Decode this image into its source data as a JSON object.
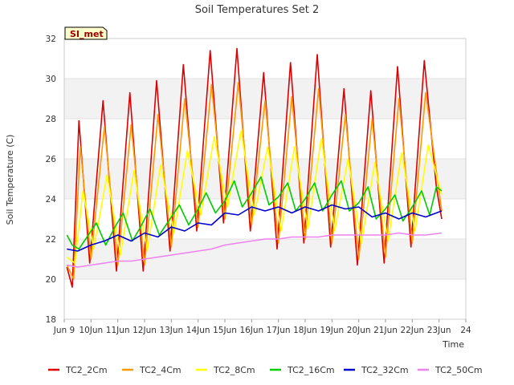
{
  "chart_data": {
    "type": "line",
    "title": "Soil Temperatures Set 2",
    "xlabel": "Time",
    "ylabel": "Soil Temperature (C)",
    "badge": "SI_met",
    "xlim": [
      9,
      24
    ],
    "ylim": [
      18,
      32
    ],
    "x_ticks": [
      9,
      10,
      11,
      12,
      13,
      14,
      15,
      16,
      17,
      18,
      19,
      20,
      21,
      22,
      23,
      24
    ],
    "x_tick_labels": [
      "Jun 9",
      "10Jun",
      "11Jun",
      "12Jun",
      "13Jun",
      "14Jun",
      "15Jun",
      "16Jun",
      "17Jun",
      "18Jun",
      "19Jun",
      "20Jun",
      "21Jun",
      "22Jun",
      "23Jun",
      "24"
    ],
    "y_ticks": [
      18,
      20,
      22,
      24,
      26,
      28,
      30,
      32
    ],
    "y_tick_labels": [
      "18",
      "20",
      "22",
      "24",
      "26",
      "28",
      "30",
      "32"
    ],
    "grid": true,
    "band_color": "#f2f2f2",
    "legend_position": "bottom",
    "series": [
      {
        "name": "TC2_2Cm",
        "color": "#dd0000",
        "x": [
          9.1,
          9.3,
          9.55,
          9.95,
          10.45,
          10.95,
          11.45,
          11.95,
          12.45,
          12.95,
          13.45,
          13.95,
          14.45,
          14.95,
          15.45,
          15.95,
          16.45,
          16.95,
          17.45,
          17.95,
          18.45,
          18.95,
          19.45,
          19.95,
          20.45,
          20.95,
          21.45,
          21.95,
          22.45,
          22.9,
          23.1
        ],
        "y": [
          20.6,
          19.6,
          27.9,
          20.8,
          28.9,
          20.4,
          29.3,
          20.4,
          29.9,
          21.4,
          30.7,
          22.4,
          31.4,
          22.8,
          31.5,
          22.4,
          30.3,
          21.5,
          30.8,
          21.8,
          31.2,
          21.6,
          29.5,
          20.7,
          29.4,
          20.8,
          30.6,
          21.6,
          30.9,
          24.6,
          23.0
        ]
      },
      {
        "name": "TC2_4Cm",
        "color": "#ff9900",
        "x": [
          9.1,
          9.35,
          9.6,
          10.0,
          10.5,
          11.0,
          11.5,
          12.0,
          12.5,
          13.0,
          13.5,
          14.0,
          14.5,
          15.0,
          15.5,
          16.0,
          16.5,
          17.0,
          17.5,
          18.0,
          18.5,
          19.0,
          19.5,
          20.0,
          20.5,
          21.0,
          21.5,
          22.0,
          22.5,
          23.1
        ],
        "y": [
          20.7,
          20.0,
          26.6,
          21.0,
          27.6,
          20.7,
          27.7,
          20.7,
          28.2,
          21.6,
          29.0,
          22.6,
          29.7,
          23.0,
          29.8,
          22.7,
          28.9,
          21.8,
          29.1,
          22.0,
          29.5,
          21.8,
          28.2,
          21.0,
          28.0,
          21.1,
          29.0,
          21.8,
          29.3,
          23.4
        ]
      },
      {
        "name": "TC2_8Cm",
        "color": "#ffff00",
        "x": [
          9.1,
          9.4,
          9.7,
          10.1,
          10.6,
          11.1,
          11.6,
          12.1,
          12.6,
          13.1,
          13.6,
          14.1,
          14.6,
          15.1,
          15.6,
          16.1,
          16.6,
          17.1,
          17.6,
          18.1,
          18.6,
          19.1,
          19.6,
          20.1,
          20.6,
          21.1,
          21.6,
          22.1,
          22.6,
          23.1
        ],
        "y": [
          21.1,
          20.8,
          24.4,
          21.5,
          25.2,
          21.2,
          25.4,
          21.4,
          25.7,
          22.3,
          26.4,
          23.2,
          27.1,
          23.6,
          27.4,
          23.2,
          26.6,
          22.4,
          26.6,
          22.5,
          27.0,
          22.4,
          26.0,
          21.8,
          25.8,
          21.9,
          26.3,
          22.4,
          26.7,
          24.2
        ]
      },
      {
        "name": "TC2_16Cm",
        "color": "#00cc00",
        "x": [
          9.1,
          9.3,
          9.55,
          9.85,
          10.2,
          10.55,
          10.85,
          11.2,
          11.55,
          11.85,
          12.2,
          12.55,
          12.9,
          13.3,
          13.65,
          14.0,
          14.3,
          14.65,
          15.0,
          15.35,
          15.65,
          16.0,
          16.35,
          16.65,
          17.0,
          17.35,
          17.65,
          18.0,
          18.35,
          18.65,
          19.0,
          19.35,
          19.65,
          20.0,
          20.35,
          20.65,
          21.0,
          21.35,
          21.65,
          22.0,
          22.35,
          22.65,
          22.9,
          23.1
        ],
        "y": [
          22.2,
          21.7,
          21.5,
          22.1,
          22.8,
          21.7,
          22.5,
          23.3,
          21.9,
          22.6,
          23.5,
          22.2,
          22.9,
          23.7,
          22.7,
          23.5,
          24.3,
          23.3,
          23.9,
          24.9,
          23.6,
          24.3,
          25.1,
          23.7,
          24.1,
          24.8,
          23.4,
          24.0,
          24.8,
          23.4,
          24.2,
          24.9,
          23.4,
          23.8,
          24.6,
          23.0,
          23.5,
          24.2,
          22.9,
          23.6,
          24.4,
          23.2,
          24.6,
          24.4
        ]
      },
      {
        "name": "TC2_32Cm",
        "color": "#0000cc",
        "x": [
          9.1,
          9.5,
          10.0,
          10.5,
          11.0,
          11.5,
          12.0,
          12.5,
          13.0,
          13.5,
          14.0,
          14.5,
          15.0,
          15.5,
          16.0,
          16.5,
          17.0,
          17.5,
          18.0,
          18.5,
          19.0,
          19.5,
          20.0,
          20.5,
          21.0,
          21.5,
          22.0,
          22.5,
          23.1
        ],
        "y": [
          21.5,
          21.4,
          21.7,
          21.9,
          22.2,
          21.9,
          22.3,
          22.1,
          22.6,
          22.4,
          22.8,
          22.7,
          23.3,
          23.2,
          23.6,
          23.4,
          23.6,
          23.3,
          23.6,
          23.4,
          23.7,
          23.5,
          23.6,
          23.1,
          23.3,
          23.0,
          23.3,
          23.1,
          23.4
        ]
      },
      {
        "name": "TC2_50Cm",
        "color": "#ee82ee",
        "x": [
          9.1,
          9.5,
          10.0,
          10.5,
          11.0,
          11.5,
          12.0,
          12.5,
          13.0,
          13.5,
          14.0,
          14.5,
          15.0,
          15.5,
          16.0,
          16.5,
          17.0,
          17.5,
          18.0,
          18.5,
          19.0,
          19.5,
          20.0,
          20.5,
          21.0,
          21.5,
          22.0,
          22.5,
          23.1
        ],
        "y": [
          20.7,
          20.6,
          20.7,
          20.8,
          20.9,
          20.9,
          21.0,
          21.1,
          21.2,
          21.3,
          21.4,
          21.5,
          21.7,
          21.8,
          21.9,
          22.0,
          22.0,
          22.1,
          22.1,
          22.1,
          22.2,
          22.2,
          22.2,
          22.2,
          22.2,
          22.3,
          22.2,
          22.2,
          22.3
        ]
      }
    ]
  }
}
